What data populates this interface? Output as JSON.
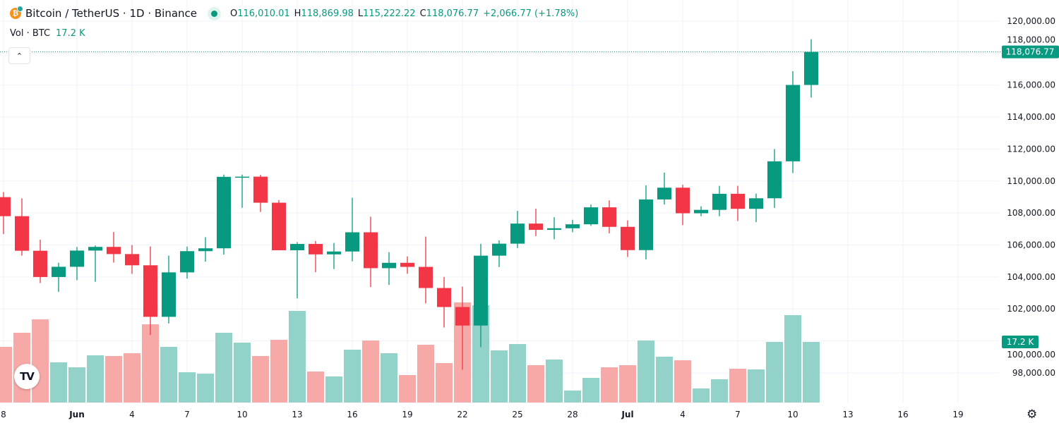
{
  "legend": {
    "symbol": "Bitcoin / TetherUS · 1D · Binance",
    "coin_icon": "bitcoin-icon",
    "open_label": "O",
    "open": "116,010.01",
    "high_label": "H",
    "high": "118,869.98",
    "low_label": "L",
    "low": "115,222.22",
    "close_label": "C",
    "close": "118,076.77",
    "change": "+2,066.77 (+1.78%)"
  },
  "volume_legend": {
    "label": "Vol · BTC",
    "value": "17.2 K"
  },
  "collapse_icon": "chevron-up-icon",
  "logo_text": "TV",
  "settings_icon": "gear-icon",
  "colors": {
    "up": "#089981",
    "down": "#f23645",
    "up_volume": "#92d2c9",
    "down_volume": "#f7a9a7",
    "grid": "#f0f3fa"
  },
  "chart_data": {
    "type": "candlestick",
    "grid": true,
    "ylim": [
      97000,
      121000
    ],
    "y_ticks": [
      "120,000.00",
      "118,000.00",
      "116,000.00",
      "114,000.00",
      "112,000.00",
      "110,000.00",
      "108,000.00",
      "106,000.00",
      "104,000.00",
      "102,000.00",
      "100,000.00",
      "98,000.00"
    ],
    "y_tick_values": [
      120000,
      118000,
      116000,
      114000,
      112000,
      110000,
      108000,
      106000,
      104000,
      102000,
      100000,
      98000
    ],
    "x_ticks": [
      {
        "label": "8",
        "date": "May 28"
      },
      {
        "label": "Jun",
        "date": "Jun 1"
      },
      {
        "label": "4",
        "date": "Jun 4"
      },
      {
        "label": "7",
        "date": "Jun 7"
      },
      {
        "label": "10",
        "date": "Jun 10"
      },
      {
        "label": "13",
        "date": "Jun 13"
      },
      {
        "label": "16",
        "date": "Jun 16"
      },
      {
        "label": "19",
        "date": "Jun 19"
      },
      {
        "label": "22",
        "date": "Jun 22"
      },
      {
        "label": "25",
        "date": "Jun 25"
      },
      {
        "label": "28",
        "date": "Jun 28"
      },
      {
        "label": "Jul",
        "date": "Jul 1"
      },
      {
        "label": "4",
        "date": "Jul 4"
      },
      {
        "label": "7",
        "date": "Jul 7"
      },
      {
        "label": "10",
        "date": "Jul 10"
      },
      {
        "label": "13",
        "date": "Jul 13"
      },
      {
        "label": "16",
        "date": "Jul 16"
      },
      {
        "label": "19",
        "date": "Jul 19"
      }
    ],
    "last_price_label": "118,076.77",
    "last_volume_label": "17.2 K",
    "volume_unit": "K BTC",
    "candles": [
      {
        "date": "May 28",
        "o": 108994,
        "h": 109313,
        "l": 106682,
        "c": 107802,
        "v": 15.8
      },
      {
        "date": "May 29",
        "o": 107802,
        "h": 108917,
        "l": 105336,
        "c": 105641,
        "v": 19.8
      },
      {
        "date": "May 30",
        "o": 105641,
        "h": 106326,
        "l": 103621,
        "c": 103998,
        "v": 23.6
      },
      {
        "date": "May 31",
        "o": 103998,
        "h": 104888,
        "l": 103066,
        "c": 104638,
        "v": 11.4
      },
      {
        "date": "Jun 1",
        "o": 104638,
        "h": 105880,
        "l": 103800,
        "c": 105652,
        "v": 10.0
      },
      {
        "date": "Jun 2",
        "o": 105652,
        "h": 105970,
        "l": 103700,
        "c": 105881,
        "v": 13.4
      },
      {
        "date": "Jun 3",
        "o": 105881,
        "h": 106813,
        "l": 104900,
        "c": 105432,
        "v": 13.2
      },
      {
        "date": "Jun 4",
        "o": 105432,
        "h": 105997,
        "l": 104193,
        "c": 104731,
        "v": 14.0
      },
      {
        "date": "Jun 5",
        "o": 104731,
        "h": 105909,
        "l": 100372,
        "c": 101508,
        "v": 22.2
      },
      {
        "date": "Jun 6",
        "o": 101508,
        "h": 105333,
        "l": 101095,
        "c": 104288,
        "v": 15.8
      },
      {
        "date": "Jun 7",
        "o": 104288,
        "h": 105900,
        "l": 103900,
        "c": 105615,
        "v": 8.6
      },
      {
        "date": "Jun 8",
        "o": 105615,
        "h": 106488,
        "l": 104964,
        "c": 105793,
        "v": 8.2
      },
      {
        "date": "Jun 9",
        "o": 105793,
        "h": 110400,
        "l": 105400,
        "c": 110263,
        "v": 19.8
      },
      {
        "date": "Jun 10",
        "o": 110263,
        "h": 110400,
        "l": 108331,
        "c": 110274,
        "v": 17.0
      },
      {
        "date": "Jun 11",
        "o": 110274,
        "h": 110392,
        "l": 108064,
        "c": 108645,
        "v": 13.2
      },
      {
        "date": "Jun 12",
        "o": 108645,
        "h": 108813,
        "l": 105671,
        "c": 105671,
        "v": 17.8
      },
      {
        "date": "Jun 13",
        "o": 105671,
        "h": 106179,
        "l": 102664,
        "c": 106066,
        "v": 26.0
      },
      {
        "date": "Jun 14",
        "o": 106066,
        "h": 106252,
        "l": 104300,
        "c": 105414,
        "v": 8.8
      },
      {
        "date": "Jun 15",
        "o": 105414,
        "h": 106128,
        "l": 104494,
        "c": 105594,
        "v": 7.4
      },
      {
        "date": "Jun 16",
        "o": 105594,
        "h": 108952,
        "l": 104980,
        "c": 106794,
        "v": 15.0
      },
      {
        "date": "Jun 17",
        "o": 106794,
        "h": 107771,
        "l": 103371,
        "c": 104551,
        "v": 17.6
      },
      {
        "date": "Jun 18",
        "o": 104551,
        "h": 105550,
        "l": 103500,
        "c": 104886,
        "v": 14.0
      },
      {
        "date": "Jun 19",
        "o": 104886,
        "h": 105286,
        "l": 104200,
        "c": 104632,
        "v": 7.8
      },
      {
        "date": "Jun 20",
        "o": 104632,
        "h": 106524,
        "l": 102345,
        "c": 103310,
        "v": 16.4
      },
      {
        "date": "Jun 21",
        "o": 103310,
        "h": 104000,
        "l": 100838,
        "c": 102120,
        "v": 11.2
      },
      {
        "date": "Jun 22",
        "o": 102120,
        "h": 103399,
        "l": 98200,
        "c": 100963,
        "v": 28.4
      },
      {
        "date": "Jun 23",
        "o": 100963,
        "h": 106074,
        "l": 99613,
        "c": 105333,
        "v": 27.6
      },
      {
        "date": "Jun 24",
        "o": 105333,
        "h": 106290,
        "l": 104622,
        "c": 106083,
        "v": 14.8
      },
      {
        "date": "Jun 25",
        "o": 106083,
        "h": 108135,
        "l": 105808,
        "c": 107340,
        "v": 16.6
      },
      {
        "date": "Jun 26",
        "o": 107340,
        "h": 108272,
        "l": 106562,
        "c": 106947,
        "v": 10.6
      },
      {
        "date": "Jun 27",
        "o": 106947,
        "h": 107735,
        "l": 106356,
        "c": 107047,
        "v": 12.2
      },
      {
        "date": "Jun 28",
        "o": 107047,
        "h": 107577,
        "l": 106800,
        "c": 107296,
        "v": 3.4
      },
      {
        "date": "Jun 29",
        "o": 107296,
        "h": 108528,
        "l": 107200,
        "c": 108356,
        "v": 7.0
      },
      {
        "date": "Jun 30",
        "o": 108356,
        "h": 108789,
        "l": 106733,
        "c": 107136,
        "v": 10.0
      },
      {
        "date": "Jul 1",
        "o": 107136,
        "h": 107540,
        "l": 105250,
        "c": 105681,
        "v": 10.6
      },
      {
        "date": "Jul 2",
        "o": 105681,
        "h": 109730,
        "l": 105100,
        "c": 108850,
        "v": 17.6
      },
      {
        "date": "Jul 3",
        "o": 108850,
        "h": 110529,
        "l": 108530,
        "c": 109584,
        "v": 13.0
      },
      {
        "date": "Jul 4",
        "o": 109584,
        "h": 109765,
        "l": 107245,
        "c": 107984,
        "v": 12.0
      },
      {
        "date": "Jul 5",
        "o": 107984,
        "h": 108420,
        "l": 107800,
        "c": 108198,
        "v": 4.0
      },
      {
        "date": "Jul 6",
        "o": 108198,
        "h": 109700,
        "l": 107800,
        "c": 109203,
        "v": 6.6
      },
      {
        "date": "Jul 7",
        "o": 109203,
        "h": 109700,
        "l": 107500,
        "c": 108262,
        "v": 9.6
      },
      {
        "date": "Jul 8",
        "o": 108262,
        "h": 109216,
        "l": 107429,
        "c": 108922,
        "v": 9.4
      },
      {
        "date": "Jul 9",
        "o": 108922,
        "h": 111999,
        "l": 108324,
        "c": 111233,
        "v": 17.2
      },
      {
        "date": "Jul 10",
        "o": 111233,
        "h": 116868,
        "l": 110500,
        "c": 116010,
        "v": 24.8
      },
      {
        "date": "Jul 11",
        "o": 116010.01,
        "h": 118869.98,
        "l": 115222.22,
        "c": 118076.77,
        "v": 17.2
      }
    ]
  }
}
